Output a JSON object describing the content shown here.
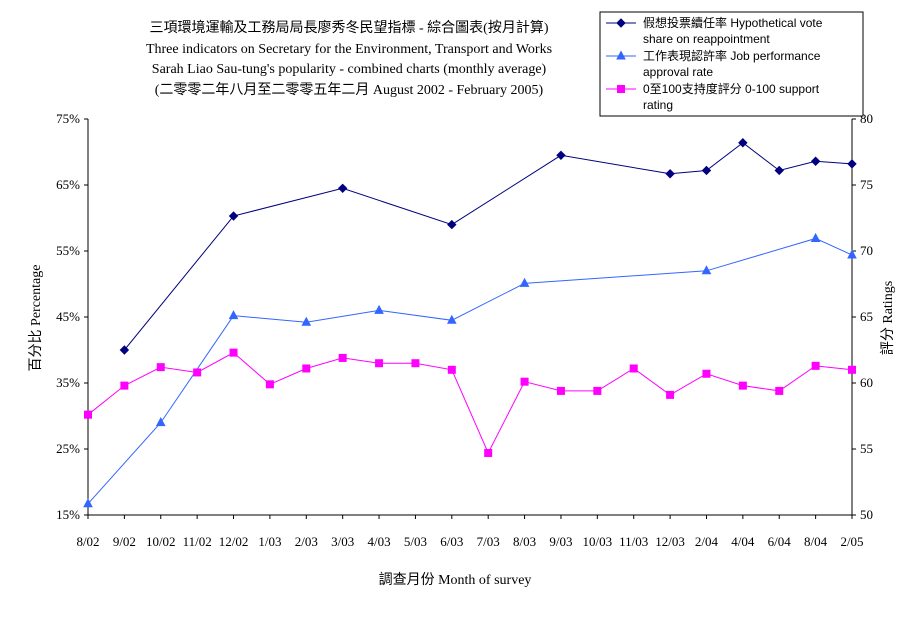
{
  "chart_data": {
    "type": "line",
    "title_lines": [
      "三項環境運輸及工務局局長廖秀冬民望指標 - 綜合圖表(按月計算)",
      "Three indicators on Secretary for the Environment, Transport and Works",
      "Sarah Liao Sau-tung's popularity - combined charts (monthly average)",
      "(二零零二年八月至二零零五年二月 August 2002 - February 2005)"
    ],
    "xlabel": "調查月份 Month of survey",
    "ylabel_left": "百分比 Percentage",
    "ylabel_right": "評分 Ratings",
    "categories": [
      "8/02",
      "9/02",
      "10/02",
      "11/02",
      "12/02",
      "1/03",
      "2/03",
      "3/03",
      "4/03",
      "5/03",
      "6/03",
      "7/03",
      "8/03",
      "9/03",
      "10/03",
      "11/03",
      "12/03",
      "2/04",
      "4/04",
      "6/04",
      "8/04",
      "2/05"
    ],
    "y_left": {
      "min": 15,
      "max": 75,
      "ticks": [
        15,
        25,
        35,
        45,
        55,
        65,
        75
      ],
      "tick_labels": [
        "15%",
        "25%",
        "35%",
        "45%",
        "55%",
        "65%",
        "75%"
      ]
    },
    "y_right": {
      "min": 50,
      "max": 80,
      "ticks": [
        50,
        55,
        60,
        65,
        70,
        75,
        80
      ],
      "tick_labels": [
        "50",
        "55",
        "60",
        "65",
        "70",
        "75",
        "80"
      ]
    },
    "grid": false,
    "legend_position": "top-right",
    "series": [
      {
        "name": "假想投票續任率 Hypothetical vote share on reappointment",
        "axis": "left",
        "color": "#000080",
        "marker": "diamond",
        "values": [
          null,
          40.0,
          null,
          null,
          60.3,
          null,
          null,
          64.5,
          null,
          null,
          59.0,
          null,
          null,
          69.5,
          null,
          null,
          66.7,
          67.2,
          71.4,
          67.2,
          68.6,
          68.2
        ]
      },
      {
        "name": "工作表現認許率 Job performance approval rate",
        "axis": "left",
        "color": "#3366FF",
        "marker": "triangle",
        "values": [
          16.7,
          null,
          29.0,
          null,
          45.2,
          null,
          44.2,
          null,
          46.0,
          null,
          44.5,
          null,
          50.1,
          null,
          null,
          null,
          null,
          52.0,
          null,
          null,
          56.9,
          54.4
        ]
      },
      {
        "name": "0至100支持度評分 0-100 support rating",
        "axis": "right",
        "color": "#FF00FF",
        "marker": "square",
        "values": [
          57.6,
          59.8,
          61.2,
          60.8,
          62.3,
          59.9,
          61.1,
          61.9,
          61.5,
          61.5,
          61.0,
          54.7,
          60.1,
          59.4,
          59.4,
          61.1,
          59.1,
          60.7,
          59.8,
          59.4,
          61.3,
          61.0
        ]
      }
    ]
  }
}
